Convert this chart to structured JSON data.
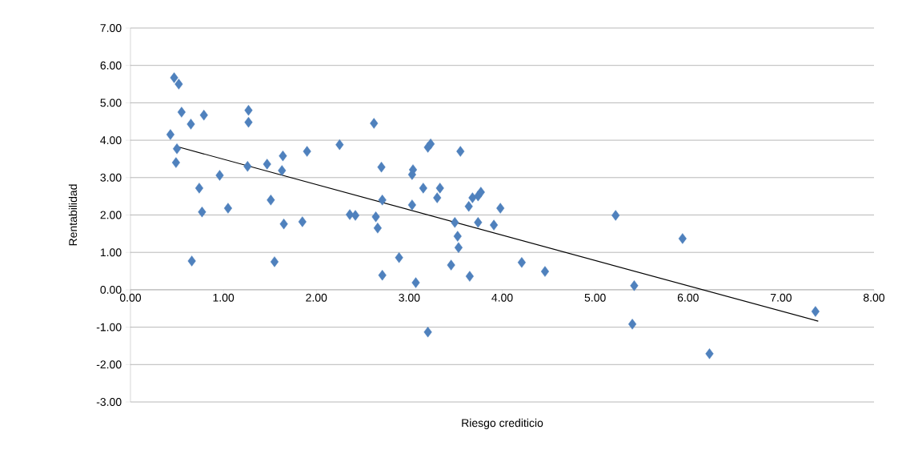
{
  "chart_data": {
    "type": "scatter",
    "xlabel": "Riesgo crediticio",
    "ylabel": "Rentabilidad",
    "xlim": [
      0,
      8
    ],
    "ylim": [
      -3,
      7
    ],
    "xticks": [
      {
        "value": 0,
        "label": "0.00"
      },
      {
        "value": 1,
        "label": "1.00"
      },
      {
        "value": 2,
        "label": "2.00"
      },
      {
        "value": 3,
        "label": "3.00"
      },
      {
        "value": 4,
        "label": "4.00"
      },
      {
        "value": 5,
        "label": "5.00"
      },
      {
        "value": 6,
        "label": "6.00"
      },
      {
        "value": 7,
        "label": "7.00"
      },
      {
        "value": 8,
        "label": "8.00"
      }
    ],
    "yticks": [
      {
        "value": -3,
        "label": "-3.00"
      },
      {
        "value": -2,
        "label": "-2.00"
      },
      {
        "value": -1,
        "label": "-1.00"
      },
      {
        "value": 0,
        "label": "0.00"
      },
      {
        "value": 1,
        "label": "1.00"
      },
      {
        "value": 2,
        "label": "2.00"
      },
      {
        "value": 3,
        "label": "3.00"
      },
      {
        "value": 4,
        "label": "4.00"
      },
      {
        "value": 5,
        "label": "5.00"
      },
      {
        "value": 6,
        "label": "6.00"
      },
      {
        "value": 7,
        "label": "7.00"
      }
    ],
    "grid": "y",
    "series": [
      {
        "marker": "diamond",
        "color": "#4f81bd",
        "x": [
          0.47,
          0.52,
          0.55,
          0.65,
          0.79,
          0.43,
          0.5,
          0.49,
          0.74,
          0.77,
          0.66,
          0.96,
          1.05,
          1.27,
          1.27,
          1.26,
          1.47,
          1.51,
          1.55,
          1.64,
          1.63,
          1.65,
          1.85,
          1.9,
          2.25,
          2.36,
          2.42,
          2.62,
          2.64,
          2.66,
          2.7,
          2.71,
          2.71,
          2.89,
          3.04,
          3.03,
          3.03,
          3.07,
          3.15,
          3.2,
          3.23,
          3.2,
          3.33,
          3.3,
          3.55,
          3.45,
          3.49,
          3.52,
          3.53,
          3.64,
          3.68,
          3.74,
          3.77,
          3.65,
          3.74,
          3.91,
          3.98,
          4.21,
          4.46,
          5.22,
          5.94,
          5.42,
          5.4,
          6.23,
          7.37
        ],
        "values": [
          5.67,
          5.5,
          4.75,
          4.43,
          4.67,
          4.15,
          3.77,
          3.4,
          2.72,
          2.08,
          0.77,
          3.06,
          2.18,
          4.8,
          4.48,
          3.3,
          3.36,
          2.4,
          0.75,
          3.58,
          3.19,
          1.76,
          1.82,
          3.7,
          3.88,
          2.01,
          1.99,
          4.45,
          1.95,
          1.65,
          3.28,
          2.4,
          0.39,
          0.86,
          3.21,
          3.08,
          2.27,
          0.19,
          2.72,
          3.81,
          3.9,
          -1.13,
          2.72,
          2.46,
          3.7,
          0.66,
          1.8,
          1.43,
          1.13,
          2.23,
          2.46,
          2.51,
          2.61,
          0.36,
          1.8,
          1.73,
          2.18,
          0.73,
          0.49,
          1.99,
          1.37,
          0.11,
          -0.92,
          -1.71,
          -0.58
        ]
      },
      {
        "type": "line",
        "marker": "none",
        "line_style": "solid",
        "color": "#000000",
        "x": [
          0.5,
          7.4
        ],
        "values": [
          3.83,
          -0.84
        ]
      }
    ]
  }
}
